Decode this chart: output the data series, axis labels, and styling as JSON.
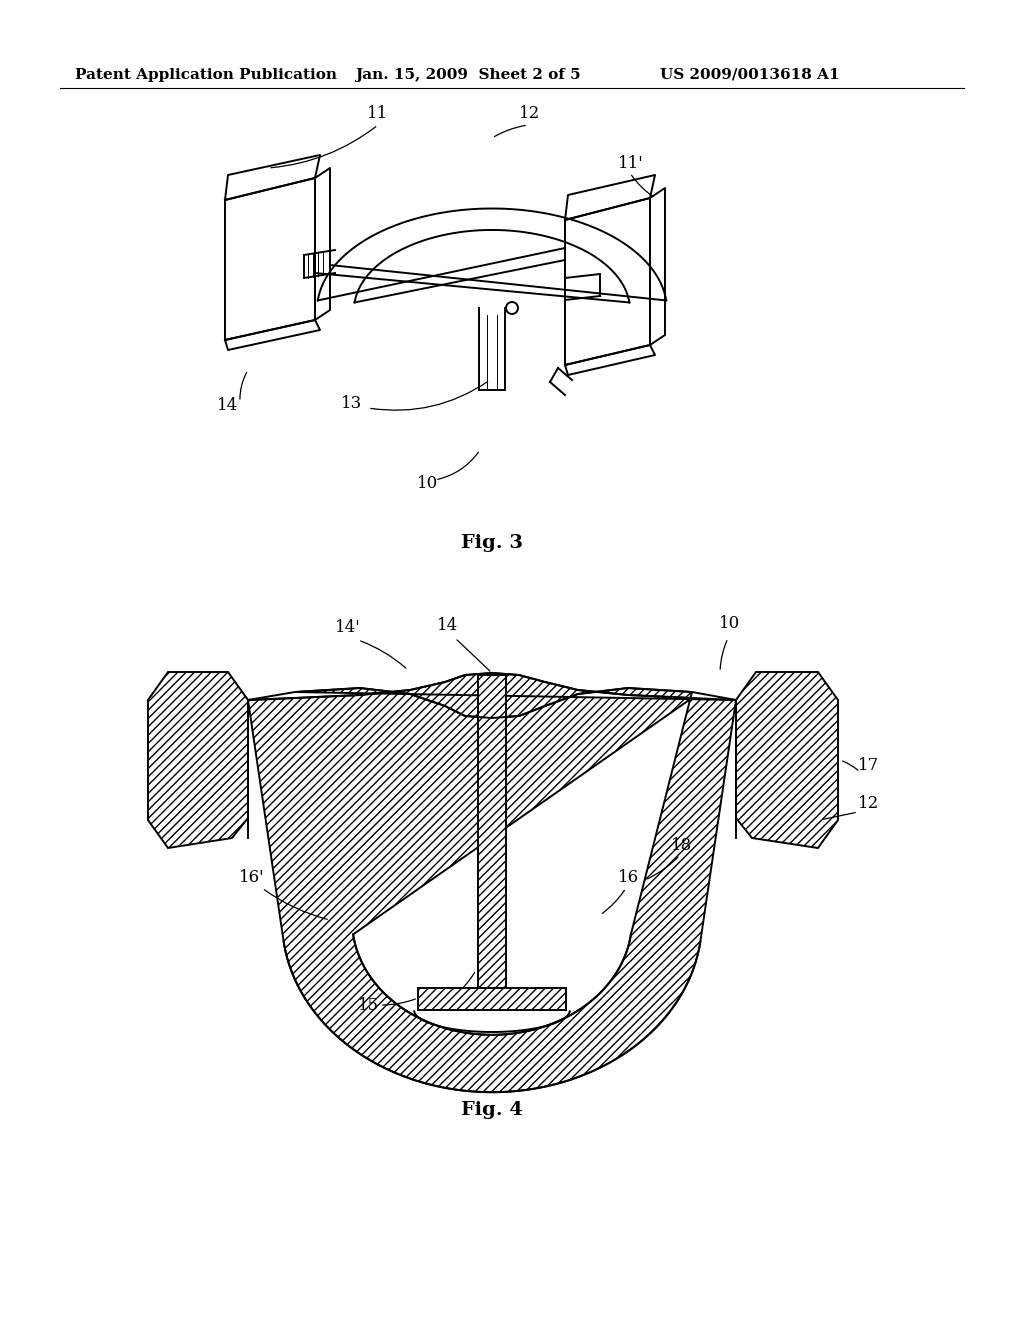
{
  "background_color": "#ffffff",
  "header_left": "Patent Application Publication",
  "header_center": "Jan. 15, 2009  Sheet 2 of 5",
  "header_right": "US 2009/0013618 A1",
  "fig3_label": "Fig. 3",
  "fig4_label": "Fig. 4",
  "line_color": "#000000"
}
